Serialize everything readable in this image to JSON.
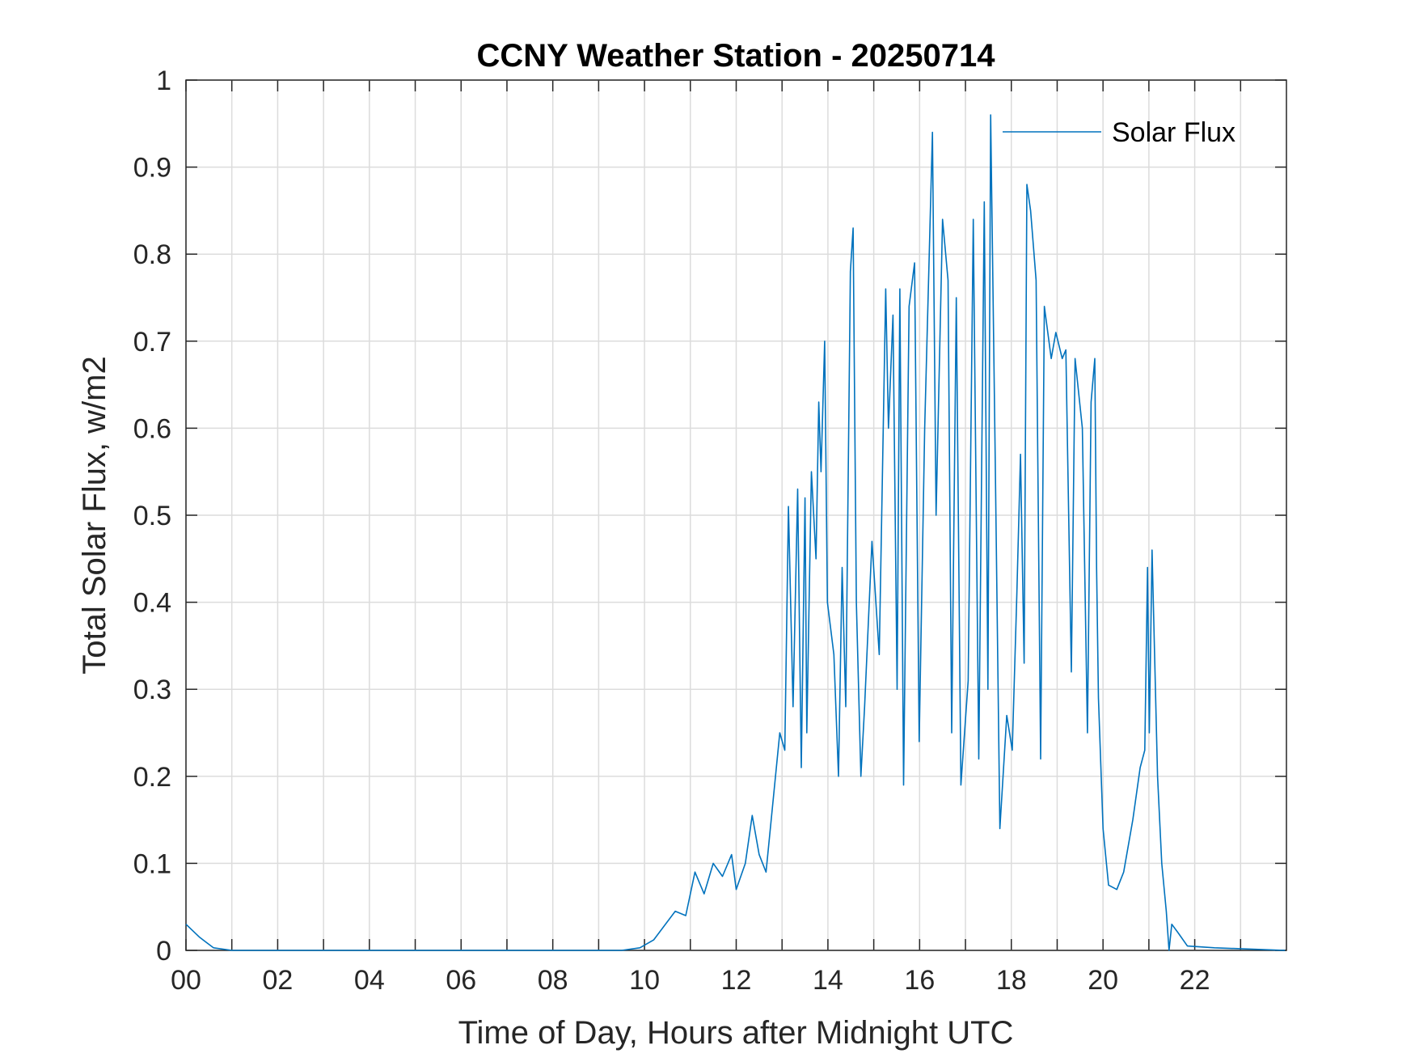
{
  "chart_data": {
    "type": "line",
    "title": "CCNY Weather Station - 20250714",
    "xlabel": "Time of Day, Hours after Midnight UTC",
    "ylabel": "Total Solar Flux, w/m2",
    "xlim": [
      0,
      24
    ],
    "ylim": [
      0,
      1
    ],
    "xticks": [
      {
        "value": 0,
        "label": "00"
      },
      {
        "value": 2,
        "label": "02"
      },
      {
        "value": 4,
        "label": "04"
      },
      {
        "value": 6,
        "label": "06"
      },
      {
        "value": 8,
        "label": "08"
      },
      10,
      12,
      14,
      16,
      18,
      20,
      22
    ],
    "xminor_ticks": [
      1,
      3,
      5,
      7,
      9,
      11,
      13,
      15,
      17,
      19,
      21,
      23
    ],
    "yticks": [
      0,
      0.1,
      0.2,
      0.3,
      0.4,
      0.5,
      0.6,
      0.7,
      0.8,
      0.9,
      1
    ],
    "grid": true,
    "legend": "upper right",
    "x": [
      0,
      0.3,
      0.6,
      1,
      9.5,
      9.9,
      10.2,
      10.67,
      10.9,
      11.1,
      11.3,
      11.5,
      11.7,
      11.9,
      12.0,
      12.2,
      12.35,
      12.5,
      12.65,
      12.8,
      12.95,
      13.06,
      13.14,
      13.24,
      13.34,
      13.42,
      13.5,
      13.54,
      13.64,
      13.74,
      13.8,
      13.85,
      13.93,
      13.99,
      14.13,
      14.23,
      14.31,
      14.39,
      14.49,
      14.55,
      14.62,
      14.72,
      14.8,
      14.96,
      15.12,
      15.26,
      15.32,
      15.42,
      15.51,
      15.57,
      15.65,
      15.77,
      15.89,
      15.99,
      16.11,
      16.28,
      16.36,
      16.5,
      16.62,
      16.7,
      16.8,
      16.9,
      17.06,
      17.17,
      17.29,
      17.41,
      17.49,
      17.55,
      17.65,
      17.75,
      17.9,
      18.02,
      18.12,
      18.2,
      18.28,
      18.34,
      18.42,
      18.54,
      18.64,
      18.72,
      18.87,
      18.97,
      19.11,
      19.19,
      19.31,
      19.39,
      19.55,
      19.66,
      19.74,
      19.82,
      19.86,
      19.9,
      20.0,
      20.12,
      20.3,
      20.45,
      20.65,
      20.81,
      20.91,
      20.97,
      21.01,
      21.07,
      21.19,
      21.28,
      21.38,
      21.44,
      21.5,
      21.64,
      21.84,
      22.43,
      23.97
    ],
    "series": [
      {
        "name": "Solar Flux",
        "color": "#0072bd",
        "values": [
          0.03,
          0.015,
          0.003,
          0,
          0,
          0.003,
          0.012,
          0.045,
          0.04,
          0.09,
          0.065,
          0.1,
          0.085,
          0.11,
          0.07,
          0.1,
          0.155,
          0.11,
          0.09,
          0.17,
          0.25,
          0.23,
          0.51,
          0.28,
          0.53,
          0.21,
          0.52,
          0.25,
          0.55,
          0.45,
          0.63,
          0.55,
          0.7,
          0.4,
          0.34,
          0.2,
          0.44,
          0.28,
          0.78,
          0.83,
          0.4,
          0.2,
          0.28,
          0.47,
          0.34,
          0.76,
          0.6,
          0.73,
          0.3,
          0.76,
          0.19,
          0.74,
          0.79,
          0.24,
          0.6,
          0.94,
          0.5,
          0.84,
          0.77,
          0.25,
          0.75,
          0.19,
          0.31,
          0.84,
          0.22,
          0.86,
          0.3,
          0.96,
          0.56,
          0.14,
          0.27,
          0.23,
          0.41,
          0.57,
          0.33,
          0.88,
          0.85,
          0.77,
          0.22,
          0.74,
          0.68,
          0.71,
          0.68,
          0.69,
          0.32,
          0.68,
          0.6,
          0.25,
          0.63,
          0.68,
          0.44,
          0.29,
          0.14,
          0.075,
          0.07,
          0.09,
          0.15,
          0.21,
          0.23,
          0.44,
          0.25,
          0.46,
          0.2,
          0.1,
          0.045,
          0,
          0.03,
          0.02,
          0.005,
          0.003,
          0
        ]
      }
    ]
  }
}
